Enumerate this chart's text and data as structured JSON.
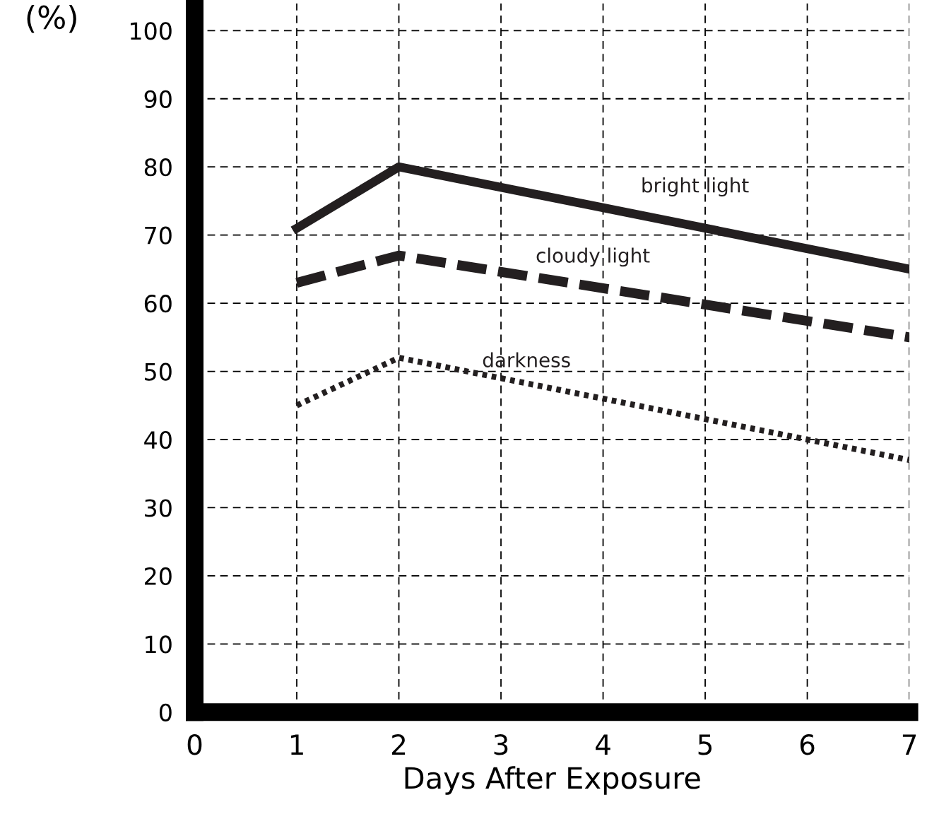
{
  "chart_data": {
    "type": "line",
    "xlabel": "Days After Exposure",
    "ylabel": "(%)",
    "x": [
      1,
      2,
      7
    ],
    "series": [
      {
        "name": "bright light",
        "color": "#231f20",
        "values": [
          71,
          80,
          65
        ],
        "line_style": "solid"
      },
      {
        "name": "cloudy light",
        "color": "#231f20",
        "values": [
          63,
          67,
          55
        ],
        "line_style": "dashed"
      },
      {
        "name": "darkness",
        "color": "#231f20",
        "values": [
          45,
          52,
          37
        ],
        "line_style": "dotted"
      }
    ],
    "xlim": [
      0,
      7
    ],
    "xticks": [
      0,
      1,
      2,
      3,
      4,
      5,
      6,
      7
    ],
    "ylim": [
      0,
      104
    ],
    "yticks": [
      0,
      10,
      20,
      30,
      40,
      50,
      60,
      70,
      80,
      90,
      100
    ],
    "grid": true,
    "legend": false,
    "marker": "none"
  }
}
